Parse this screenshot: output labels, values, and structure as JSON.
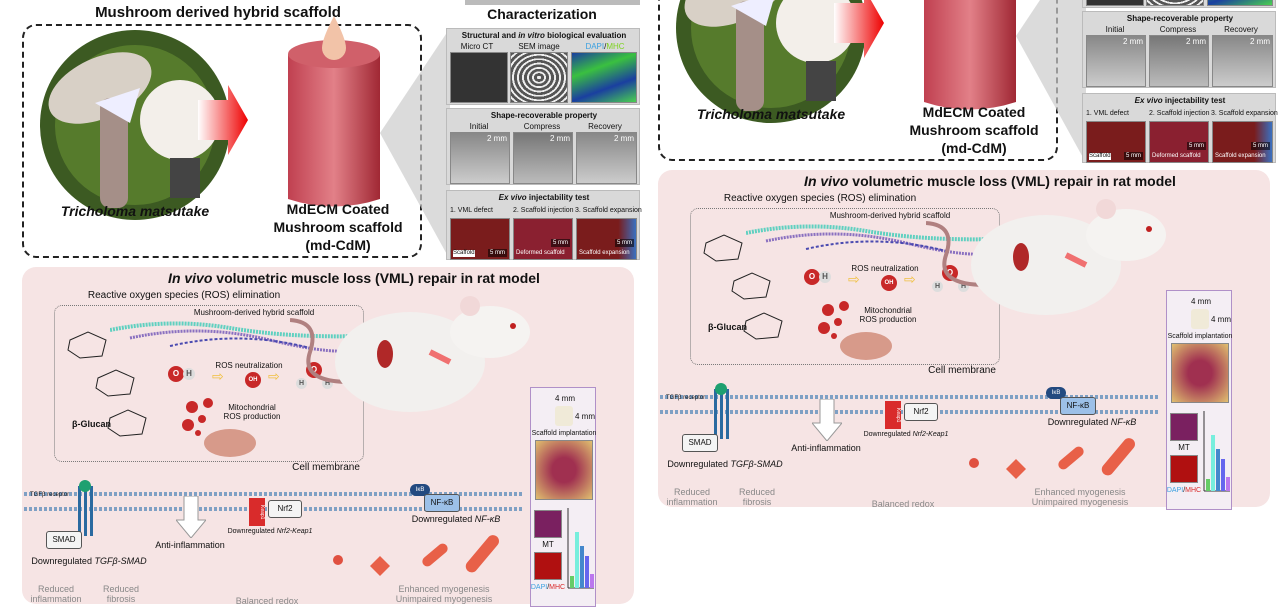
{
  "top": {
    "title": "Mushroom derived hybrid scaffold",
    "mushroom_label": "Tricholoma matsutake",
    "scaffold_label": [
      "MdECM Coated",
      "Mushroom scaffold",
      "(md-CdM)"
    ]
  },
  "characterization": {
    "title": "Characterization",
    "structural": {
      "title_pre": "Structural and ",
      "title_em": "in vitro",
      "title_post": " biological evaluation",
      "labels": [
        "Micro CT",
        "SEM image"
      ],
      "dapi": "DAPI",
      "mhc": "MHC"
    },
    "shape": {
      "title": "Shape-recoverable property",
      "labels": [
        "Initial",
        "Compress",
        "Recovery"
      ],
      "scale": "2 mm"
    },
    "injectability": {
      "title_em": "Ex vivo",
      "title_post": " injectability test",
      "steps": [
        "1. VML defect",
        "2. Scaffold injection",
        "3. Scaffold expansion"
      ],
      "captions": [
        "Scaffold",
        "Deformed scaffold",
        "Scaffold expansion"
      ],
      "scale": "5 mm"
    }
  },
  "invivo": {
    "title_em": "In vivo",
    "title_post": " volumetric muscle loss (VML) repair in rat model",
    "ros_title": "Reactive oxygen species (ROS) elimination",
    "scaffold_label": "Mushroom-derived hybrid scaffold",
    "glucan": "β-Glucan",
    "ros_neutralization": "ROS neutralization",
    "mito": [
      "Mitochondrial",
      "ROS production"
    ],
    "o": "O",
    "h": "H",
    "oh": "OH",
    "cell_membrane": "Cell membrane",
    "tgfb_receptor": "TGFβ receptor",
    "smad": "SMAD",
    "anti_inflammation": "Anti-inflammation",
    "downregulated": "Downregulated ",
    "tgfb_smad": "TGFβ-SMAD",
    "nrf2_keap1": "Nrf2-Keap1",
    "nfkb_em": "NF-κB",
    "reduced_inflammation": [
      "Reduced",
      "inflammation"
    ],
    "reduced_fibrosis": [
      "Reduced",
      "fibrosis"
    ],
    "keap1": "Keap1",
    "nrf2": "Nrf2",
    "balanced_redox": "Balanced redox",
    "ikb": "IκB",
    "nfkb": "NF-κB",
    "myogenesis": [
      "Enhanced myogenesis",
      "Unimpaired myogenesis"
    ],
    "inset": {
      "dim1": "4 mm",
      "dim2": "4 mm",
      "implant": "Scaffold implantation",
      "mt": "MT",
      "dapi": "DAPI",
      "mhc": "MHC"
    }
  },
  "colors": {
    "panel_pink": "#f6e4e4",
    "accent_red": "#d92b2b",
    "dapi_blue": "#3aa0e0",
    "mhc_green": "#7ed321",
    "membrane_blue": "#7fa0c4"
  }
}
